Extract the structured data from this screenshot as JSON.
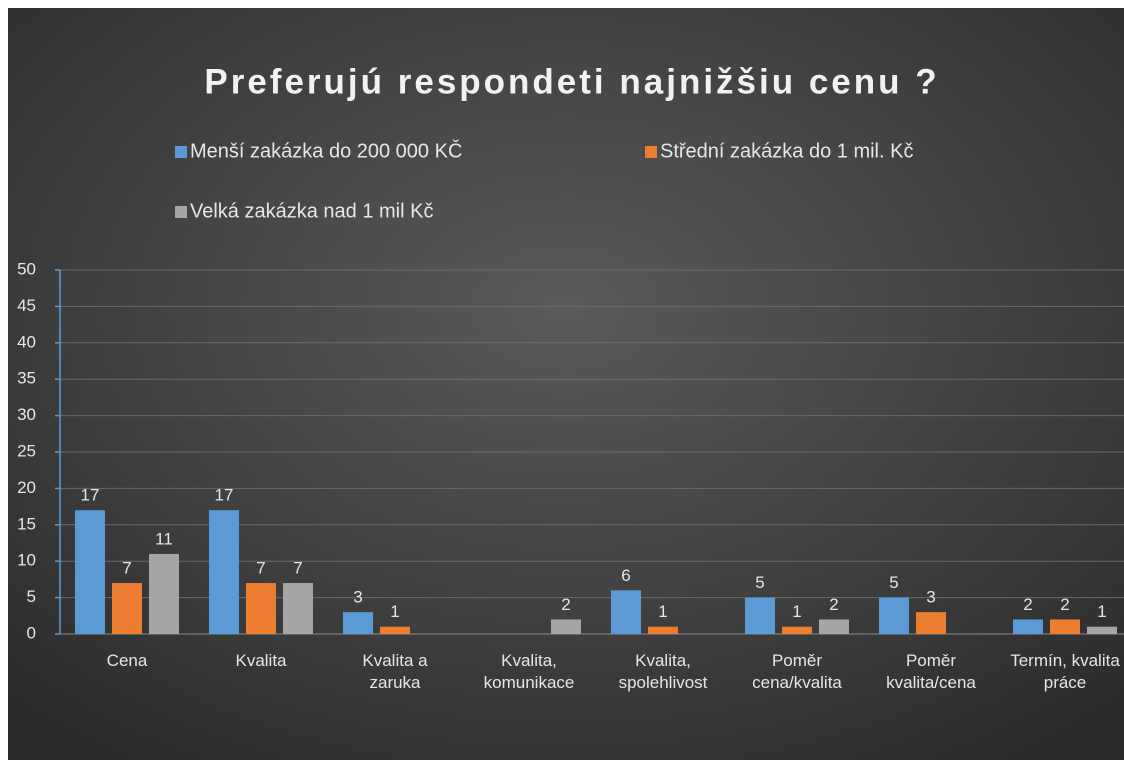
{
  "chart_data": {
    "type": "bar",
    "title": "Preferujú respondeti najnižšiu cenu ?",
    "categories": [
      "Cena",
      "Kvalita",
      "Kvalita a zaruka",
      "Kvalita, komunikace",
      "Kvalita, spolehlivost",
      "Poměr cena/kvalita",
      "Poměr kvalita/cena",
      "Termín, kvalita práce"
    ],
    "series": [
      {
        "name": "Menší zakázka do 200 000 KČ",
        "color": "#5b9bd5",
        "values": [
          17,
          17,
          3,
          null,
          6,
          5,
          5,
          2
        ]
      },
      {
        "name": "Střední zakázka do 1 mil. Kč",
        "color": "#ed7d31",
        "values": [
          7,
          7,
          1,
          null,
          1,
          1,
          3,
          2
        ]
      },
      {
        "name": "Velká zakázka nad 1 mil Kč",
        "color": "#a5a5a5",
        "values": [
          11,
          7,
          null,
          2,
          null,
          2,
          null,
          1
        ]
      }
    ],
    "ylim": [
      0,
      50
    ],
    "yticks": [
      0,
      5,
      10,
      15,
      20,
      25,
      30,
      35,
      40,
      45,
      50
    ],
    "grid": true,
    "legend": "top"
  }
}
